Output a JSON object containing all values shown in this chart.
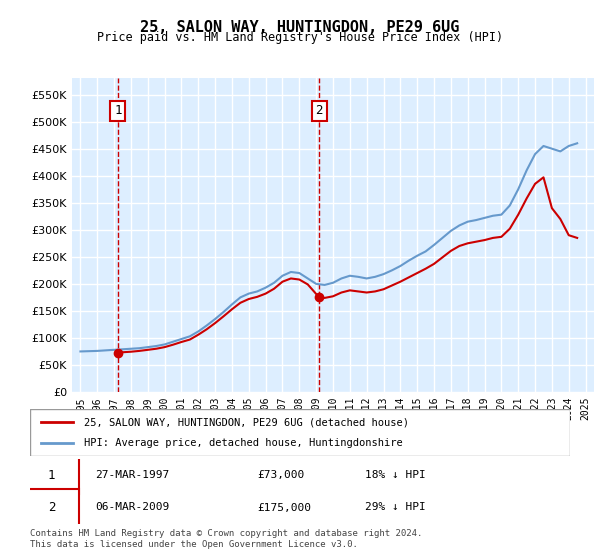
{
  "title": "25, SALON WAY, HUNTINGDON, PE29 6UG",
  "subtitle": "Price paid vs. HM Land Registry's House Price Index (HPI)",
  "legend_line1": "25, SALON WAY, HUNTINGDON, PE29 6UG (detached house)",
  "legend_line2": "HPI: Average price, detached house, Huntingdonshire",
  "footnote": "Contains HM Land Registry data © Crown copyright and database right 2024.\nThis data is licensed under the Open Government Licence v3.0.",
  "transaction1_date": "27-MAR-1997",
  "transaction1_price": "£73,000",
  "transaction1_hpi": "18% ↓ HPI",
  "transaction1_year": 1997.23,
  "transaction1_value": 73000,
  "transaction2_date": "06-MAR-2009",
  "transaction2_price": "£175,000",
  "transaction2_hpi": "29% ↓ HPI",
  "transaction2_year": 2009.18,
  "transaction2_value": 175000,
  "red_color": "#cc0000",
  "blue_color": "#6699cc",
  "background_color": "#ddeeff",
  "grid_color": "#ffffff",
  "ylim": [
    0,
    580000
  ],
  "yticks": [
    0,
    50000,
    100000,
    150000,
    200000,
    250000,
    300000,
    350000,
    400000,
    450000,
    500000,
    550000
  ],
  "hpi_years": [
    1995,
    1995.5,
    1996,
    1996.5,
    1997,
    1997.5,
    1998,
    1998.5,
    1999,
    1999.5,
    2000,
    2000.5,
    2001,
    2001.5,
    2002,
    2002.5,
    2003,
    2003.5,
    2004,
    2004.5,
    2005,
    2005.5,
    2006,
    2006.5,
    2007,
    2007.5,
    2008,
    2008.5,
    2009,
    2009.5,
    2010,
    2010.5,
    2011,
    2011.5,
    2012,
    2012.5,
    2013,
    2013.5,
    2014,
    2014.5,
    2015,
    2015.5,
    2016,
    2016.5,
    2017,
    2017.5,
    2018,
    2018.5,
    2019,
    2019.5,
    2020,
    2020.5,
    2021,
    2021.5,
    2022,
    2022.5,
    2023,
    2023.5,
    2024,
    2024.5
  ],
  "hpi_values": [
    75000,
    75500,
    76000,
    77000,
    78000,
    79000,
    80000,
    81000,
    83000,
    85000,
    88000,
    93000,
    98000,
    103000,
    112000,
    123000,
    135000,
    148000,
    162000,
    175000,
    182000,
    186000,
    193000,
    202000,
    215000,
    222000,
    220000,
    210000,
    200000,
    198000,
    202000,
    210000,
    215000,
    213000,
    210000,
    213000,
    218000,
    225000,
    233000,
    243000,
    252000,
    260000,
    272000,
    285000,
    298000,
    308000,
    315000,
    318000,
    322000,
    326000,
    328000,
    345000,
    375000,
    410000,
    440000,
    455000,
    450000,
    445000,
    455000,
    460000
  ],
  "red_years": [
    1997.23,
    1997.5,
    1998,
    1998.5,
    1999,
    1999.5,
    2000,
    2000.5,
    2001,
    2001.5,
    2002,
    2002.5,
    2003,
    2003.5,
    2004,
    2004.5,
    2005,
    2005.5,
    2006,
    2006.5,
    2007,
    2007.5,
    2008,
    2008.5,
    2009.18,
    2009.5,
    2010,
    2010.5,
    2011,
    2011.5,
    2012,
    2012.5,
    2013,
    2013.5,
    2014,
    2014.5,
    2015,
    2015.5,
    2016,
    2016.5,
    2017,
    2017.5,
    2018,
    2018.5,
    2019,
    2019.5,
    2020,
    2020.5,
    2021,
    2021.5,
    2022,
    2022.5,
    2023,
    2023.5,
    2024,
    2024.5
  ],
  "red_values": [
    73000,
    73500,
    74500,
    76000,
    78000,
    80000,
    83000,
    87500,
    92500,
    97000,
    106000,
    116000,
    127500,
    140000,
    153000,
    165000,
    172000,
    176000,
    182000,
    191000,
    204000,
    210000,
    208000,
    199000,
    175000,
    174000,
    177000,
    184000,
    188000,
    186000,
    184000,
    186000,
    190000,
    197000,
    204000,
    212000,
    220000,
    228000,
    237000,
    249000,
    261000,
    270000,
    275000,
    278000,
    281000,
    285000,
    287000,
    302000,
    328000,
    358000,
    385000,
    397000,
    340000,
    320000,
    290000,
    285000
  ]
}
